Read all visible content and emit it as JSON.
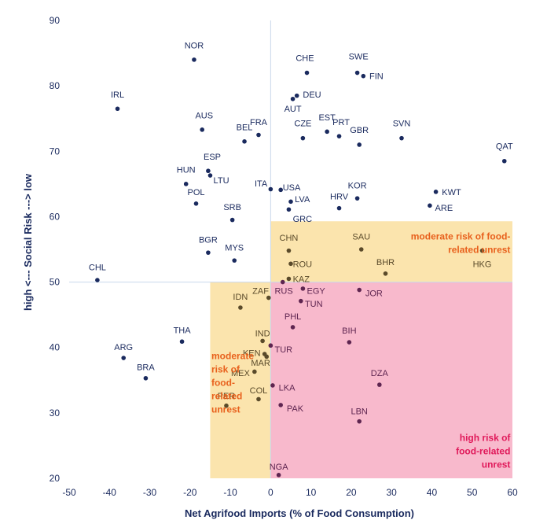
{
  "chart_data": {
    "type": "scatter",
    "title": "",
    "xlabel": "Net Agrifood Imports (% of Food Consumption)",
    "ylabel": "high <--- Social Risk ---> low",
    "xlim": [
      -50,
      60
    ],
    "ylim": [
      20,
      90
    ],
    "xticks": [
      "-50",
      "-40",
      "-30",
      "-20",
      "-10",
      "0",
      "10",
      "20",
      "30",
      "40",
      "50",
      "60"
    ],
    "yticks": [
      "20",
      "30",
      "40",
      "50",
      "60",
      "70",
      "80",
      "90"
    ],
    "threshold": {
      "x": 0,
      "y": 50
    },
    "regions": [
      {
        "name": "moderate-top",
        "x": [
          0,
          60
        ],
        "y": [
          50,
          59.3
        ],
        "color": "#fbe4ad"
      },
      {
        "name": "moderate-left",
        "x": [
          -15,
          0
        ],
        "y": [
          20,
          50
        ],
        "color": "#fbe4ad"
      },
      {
        "name": "high",
        "x": [
          0,
          60
        ],
        "y": [
          20,
          50
        ],
        "color": "#f8b9cc"
      }
    ],
    "annotations": [
      {
        "lines": [
          "moderate risk of food-",
          "related unrest"
        ],
        "color": "#e8601c",
        "anchor": "end",
        "x": 59.5,
        "y": 57
      },
      {
        "lines": [
          "moderate",
          "risk of",
          "food-",
          "related",
          "unrest"
        ],
        "color": "#e8601c",
        "anchor": "start",
        "x": -14.7,
        "y": 38.7
      },
      {
        "lines": [
          "high risk of",
          "food-related",
          "unrest"
        ],
        "color": "#e0195a",
        "anchor": "end",
        "x": 59.5,
        "y": 26.2
      }
    ],
    "colors": {
      "blue": "#1a2a5e",
      "brown": "#5a4a2a",
      "purple": "#5e2550",
      "guide": "#c9d8ec"
    },
    "points": [
      {
        "label": "NOR",
        "x": -19,
        "y": 84,
        "lx": -19,
        "ly": 86.2,
        "anchor": "middle",
        "c": "blue"
      },
      {
        "label": "IRL",
        "x": -38,
        "y": 76.5,
        "lx": -38,
        "ly": 78.7,
        "anchor": "middle",
        "c": "blue"
      },
      {
        "label": "AUS",
        "x": -17,
        "y": 73.3,
        "lx": -16.5,
        "ly": 75.5,
        "anchor": "middle",
        "c": "blue"
      },
      {
        "label": "BEL",
        "x": -6.5,
        "y": 71.5,
        "lx": -6.5,
        "ly": 73.7,
        "anchor": "middle",
        "c": "blue"
      },
      {
        "label": "FRA",
        "x": -3,
        "y": 72.5,
        "lx": -3,
        "ly": 74.5,
        "anchor": "middle",
        "c": "blue"
      },
      {
        "label": "CHE",
        "x": 9,
        "y": 82,
        "lx": 8.5,
        "ly": 84.3,
        "anchor": "middle",
        "c": "blue"
      },
      {
        "label": "SWE",
        "x": 21.5,
        "y": 82,
        "lx": 21.8,
        "ly": 84.5,
        "anchor": "middle",
        "c": "blue"
      },
      {
        "label": "FIN",
        "x": 23,
        "y": 81.5,
        "lx": 24.5,
        "ly": 81.5,
        "anchor": "start",
        "c": "blue"
      },
      {
        "label": "DEU",
        "x": 6.5,
        "y": 78.5,
        "lx": 8,
        "ly": 78.7,
        "anchor": "start",
        "c": "blue"
      },
      {
        "label": "AUT",
        "x": 5.5,
        "y": 78,
        "lx": 5.5,
        "ly": 76.5,
        "anchor": "middle",
        "c": "blue"
      },
      {
        "label": "CZE",
        "x": 8,
        "y": 72,
        "lx": 8,
        "ly": 74.3,
        "anchor": "middle",
        "c": "blue"
      },
      {
        "label": "EST",
        "x": 14,
        "y": 73,
        "lx": 14,
        "ly": 75.2,
        "anchor": "middle",
        "c": "blue"
      },
      {
        "label": "PRT",
        "x": 17,
        "y": 72.3,
        "lx": 17.5,
        "ly": 74.5,
        "anchor": "middle",
        "c": "blue"
      },
      {
        "label": "GBR",
        "x": 22,
        "y": 71,
        "lx": 22,
        "ly": 73.3,
        "anchor": "middle",
        "c": "blue"
      },
      {
        "label": "SVN",
        "x": 32.5,
        "y": 72,
        "lx": 32.5,
        "ly": 74.3,
        "anchor": "middle",
        "c": "blue"
      },
      {
        "label": "QAT",
        "x": 58,
        "y": 68.5,
        "lx": 58,
        "ly": 70.8,
        "anchor": "middle",
        "c": "blue"
      },
      {
        "label": "ESP",
        "x": -15.5,
        "y": 67,
        "lx": -14.5,
        "ly": 69.2,
        "anchor": "middle",
        "c": "blue"
      },
      {
        "label": "LTU",
        "x": -15,
        "y": 66.3,
        "lx": -14.2,
        "ly": 65.6,
        "anchor": "start",
        "c": "blue"
      },
      {
        "label": "HUN",
        "x": -21,
        "y": 65,
        "lx": -21,
        "ly": 67.2,
        "anchor": "middle",
        "c": "blue"
      },
      {
        "label": "POL",
        "x": -18.5,
        "y": 62,
        "lx": -18.5,
        "ly": 63.8,
        "anchor": "middle",
        "c": "blue"
      },
      {
        "label": "ITA",
        "x": 0,
        "y": 64.2,
        "lx": -0.8,
        "ly": 65.1,
        "anchor": "end",
        "c": "blue"
      },
      {
        "label": "USA",
        "x": 2.5,
        "y": 64.1,
        "lx": 3,
        "ly": 64.5,
        "anchor": "start",
        "c": "blue"
      },
      {
        "label": "KOR",
        "x": 21.5,
        "y": 62.8,
        "lx": 21.5,
        "ly": 64.8,
        "anchor": "middle",
        "c": "blue"
      },
      {
        "label": "KWT",
        "x": 41,
        "y": 63.8,
        "lx": 42.5,
        "ly": 63.8,
        "anchor": "start",
        "c": "blue"
      },
      {
        "label": "LVA",
        "x": 5,
        "y": 62.3,
        "lx": 6,
        "ly": 62.7,
        "anchor": "start",
        "c": "blue"
      },
      {
        "label": "HRV",
        "x": 17,
        "y": 61.3,
        "lx": 17,
        "ly": 63.1,
        "anchor": "middle",
        "c": "blue"
      },
      {
        "label": "ARE",
        "x": 39.5,
        "y": 61.7,
        "lx": 40.8,
        "ly": 61.4,
        "anchor": "start",
        "c": "blue"
      },
      {
        "label": "GRC",
        "x": 4.5,
        "y": 61.1,
        "lx": 5.5,
        "ly": 59.7,
        "anchor": "start",
        "c": "blue"
      },
      {
        "label": "SRB",
        "x": -9.5,
        "y": 59.5,
        "lx": -9.5,
        "ly": 61.5,
        "anchor": "middle",
        "c": "blue"
      },
      {
        "label": "BGR",
        "x": -15.5,
        "y": 54.5,
        "lx": -15.5,
        "ly": 56.5,
        "anchor": "middle",
        "c": "blue"
      },
      {
        "label": "MYS",
        "x": -9,
        "y": 53.3,
        "lx": -9,
        "ly": 55.3,
        "anchor": "middle",
        "c": "blue"
      },
      {
        "label": "CHL",
        "x": -43,
        "y": 50.3,
        "lx": -43,
        "ly": 52.3,
        "anchor": "middle",
        "c": "blue"
      },
      {
        "label": "CHN",
        "x": 4.5,
        "y": 54.8,
        "lx": 4.5,
        "ly": 56.8,
        "anchor": "middle",
        "c": "brown"
      },
      {
        "label": "SAU",
        "x": 22.5,
        "y": 55,
        "lx": 22.5,
        "ly": 57,
        "anchor": "middle",
        "c": "brown"
      },
      {
        "label": "ROU",
        "x": 5,
        "y": 52.8,
        "lx": 5.5,
        "ly": 52.8,
        "anchor": "start",
        "c": "brown"
      },
      {
        "label": "BHR",
        "x": 28.5,
        "y": 51.3,
        "lx": 28.5,
        "ly": 53.1,
        "anchor": "middle",
        "c": "brown"
      },
      {
        "label": "HKG",
        "x": 52.5,
        "y": 54.8,
        "lx": 52.5,
        "ly": 52.8,
        "anchor": "middle",
        "c": "brown"
      },
      {
        "label": "KAZ",
        "x": 4.5,
        "y": 50.5,
        "lx": 5.5,
        "ly": 50.5,
        "anchor": "start",
        "c": "brown"
      },
      {
        "label": "RUS",
        "x": 3,
        "y": 50,
        "lx": 1,
        "ly": 48.7,
        "anchor": "start",
        "c": "purple"
      },
      {
        "label": "EGY",
        "x": 8,
        "y": 49,
        "lx": 9,
        "ly": 48.7,
        "anchor": "start",
        "c": "purple"
      },
      {
        "label": "JOR",
        "x": 22,
        "y": 48.8,
        "lx": 23.5,
        "ly": 48.3,
        "anchor": "start",
        "c": "purple"
      },
      {
        "label": "ZAF",
        "x": -0.5,
        "y": 47.6,
        "lx": -2.5,
        "ly": 48.7,
        "anchor": "middle",
        "c": "brown"
      },
      {
        "label": "TUN",
        "x": 7.5,
        "y": 47.1,
        "lx": 8.5,
        "ly": 46.7,
        "anchor": "start",
        "c": "purple"
      },
      {
        "label": "IDN",
        "x": -7.5,
        "y": 46.1,
        "lx": -7.5,
        "ly": 47.8,
        "anchor": "middle",
        "c": "brown"
      },
      {
        "label": "PHL",
        "x": 5.5,
        "y": 43.1,
        "lx": 5.5,
        "ly": 44.8,
        "anchor": "middle",
        "c": "purple"
      },
      {
        "label": "BIH",
        "x": 19.5,
        "y": 40.8,
        "lx": 19.5,
        "ly": 42.6,
        "anchor": "middle",
        "c": "purple"
      },
      {
        "label": "IND",
        "x": -2,
        "y": 41,
        "lx": -2,
        "ly": 42.2,
        "anchor": "middle",
        "c": "brown"
      },
      {
        "label": "TUR",
        "x": 0,
        "y": 40.3,
        "lx": 1,
        "ly": 39.7,
        "anchor": "start",
        "c": "purple"
      },
      {
        "label": "KEN",
        "x": -1.5,
        "y": 39,
        "lx": -4.7,
        "ly": 39.2,
        "anchor": "middle",
        "c": "brown"
      },
      {
        "label": "MAR",
        "x": -1,
        "y": 38.6,
        "lx": -2.5,
        "ly": 37.7,
        "anchor": "middle",
        "c": "brown"
      },
      {
        "label": "MEX",
        "x": -4,
        "y": 36.3,
        "lx": -7.5,
        "ly": 36.1,
        "anchor": "middle",
        "c": "brown"
      },
      {
        "label": "DZA",
        "x": 27,
        "y": 34.3,
        "lx": 27,
        "ly": 36.1,
        "anchor": "middle",
        "c": "purple"
      },
      {
        "label": "COL",
        "x": -3,
        "y": 32.1,
        "lx": -3,
        "ly": 33.5,
        "anchor": "middle",
        "c": "brown"
      },
      {
        "label": "LKA",
        "x": 0.5,
        "y": 34.2,
        "lx": 2,
        "ly": 33.9,
        "anchor": "start",
        "c": "purple"
      },
      {
        "label": "PER",
        "x": -11,
        "y": 31.1,
        "lx": -11,
        "ly": 32.6,
        "anchor": "middle",
        "c": "brown"
      },
      {
        "label": "PAK",
        "x": 2.5,
        "y": 31.2,
        "lx": 4,
        "ly": 30.7,
        "anchor": "start",
        "c": "purple"
      },
      {
        "label": "LBN",
        "x": 22,
        "y": 28.7,
        "lx": 22,
        "ly": 30.3,
        "anchor": "middle",
        "c": "purple"
      },
      {
        "label": "NGA",
        "x": 2,
        "y": 20.5,
        "lx": 2,
        "ly": 21.8,
        "anchor": "middle",
        "c": "purple"
      },
      {
        "label": "THA",
        "x": -22,
        "y": 40.9,
        "lx": -22,
        "ly": 42.7,
        "anchor": "middle",
        "c": "blue"
      },
      {
        "label": "ARG",
        "x": -36.5,
        "y": 38.4,
        "lx": -36.5,
        "ly": 40.1,
        "anchor": "middle",
        "c": "blue"
      },
      {
        "label": "BRA",
        "x": -31,
        "y": 35.3,
        "lx": -31,
        "ly": 37,
        "anchor": "middle",
        "c": "blue"
      }
    ]
  }
}
